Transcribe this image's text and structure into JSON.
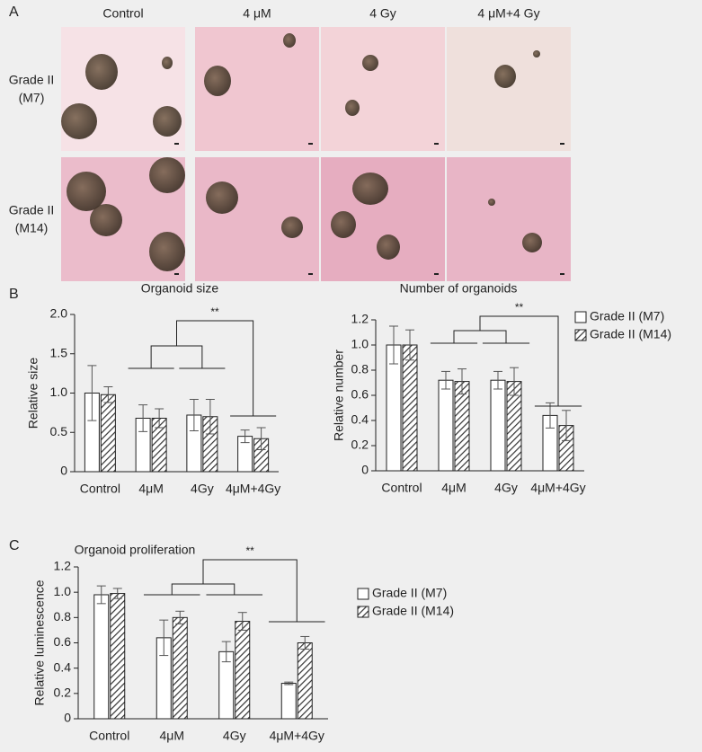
{
  "panels": [
    "A",
    "B",
    "C"
  ],
  "image_grid": {
    "columns": [
      "Control",
      "4 μM",
      "4 Gy",
      "4 μM+4 Gy"
    ],
    "rows": [
      [
        "Grade II",
        "(M7)"
      ],
      [
        "Grade II",
        "(M14)"
      ]
    ]
  },
  "chart_data": [
    {
      "type": "bar",
      "title": "Organoid size",
      "y_label": "Relative size",
      "categories": [
        "Control",
        "4μM",
        "4Gy",
        "4μM+4Gy"
      ],
      "series": [
        {
          "color": "#ffffff",
          "values": [
            1.0,
            0.68,
            0.72,
            0.45
          ],
          "errors": [
            0.35,
            0.17,
            0.2,
            0.08
          ]
        },
        {
          "color": "#333333",
          "hatch": true,
          "values": [
            0.98,
            0.68,
            0.7,
            0.42
          ],
          "errors": [
            0.1,
            0.12,
            0.22,
            0.14
          ]
        }
      ],
      "ylim": [
        0,
        2.0
      ],
      "yticks": [
        0,
        0.5,
        {
          "value": 1.0,
          "label": "1.0"
        },
        1.5,
        {
          "value": 2.0,
          "label": "2.0"
        }
      ],
      "annotations": [
        "**"
      ]
    },
    {
      "type": "bar",
      "title": "Number of organoids",
      "y_label": "Relative number",
      "categories": [
        "Control",
        "4μM",
        "4Gy",
        "4μM+4Gy"
      ],
      "series": [
        {
          "name": "Grade II (M7)",
          "color": "#ffffff",
          "values": [
            1.0,
            0.72,
            0.72,
            0.44
          ],
          "errors": [
            0.15,
            0.07,
            0.07,
            0.1
          ]
        },
        {
          "name": "Grade II (M14)",
          "color": "#333333",
          "hatch": true,
          "values": [
            1.0,
            0.71,
            0.71,
            0.36
          ],
          "errors": [
            0.12,
            0.1,
            0.11,
            0.12
          ]
        }
      ],
      "ylim": [
        0,
        1.2
      ],
      "yticks": [
        0,
        0.2,
        0.4,
        0.6,
        0.8,
        {
          "value": 1.0,
          "label": "1.0"
        },
        1.2
      ],
      "legend": "right",
      "annotations": [
        "**"
      ]
    },
    {
      "type": "bar",
      "title": "Organoid proliferation",
      "y_label": "Relative luminescence",
      "categories": [
        "Control",
        "4μM",
        "4Gy",
        "4μM+4Gy"
      ],
      "series": [
        {
          "name": "Grade II (M7)",
          "color": "#ffffff",
          "values": [
            0.98,
            0.64,
            0.53,
            0.28
          ],
          "errors": [
            0.07,
            0.14,
            0.08,
            0.01
          ]
        },
        {
          "name": "Grade II (M14)",
          "color": "#333333",
          "hatch": true,
          "values": [
            0.99,
            0.8,
            0.77,
            0.6
          ],
          "errors": [
            0.04,
            0.05,
            0.07,
            0.05
          ]
        }
      ],
      "ylim": [
        0,
        1.2
      ],
      "yticks": [
        0,
        0.2,
        0.4,
        0.6,
        0.8,
        {
          "value": 1.0,
          "label": "1.0"
        },
        1.2
      ],
      "legend": "right",
      "annotations": [
        "**"
      ]
    }
  ]
}
